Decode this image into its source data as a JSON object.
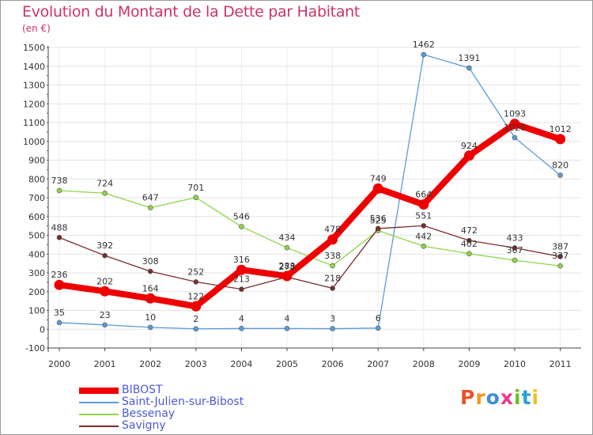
{
  "header": {
    "title": "Evolution du Montant de la Dette par Habitant",
    "unit": "(en €)"
  },
  "logo": {
    "text": "Proxiti",
    "colors": [
      "#e8532b",
      "#f29a1b",
      "#3a8fd6",
      "#e83a8a",
      "#6cbf2a",
      "#2b9fd8",
      "#f2c21b"
    ]
  },
  "chart_data": {
    "type": "line",
    "x": [
      "2000",
      "2001",
      "2002",
      "2003",
      "2004",
      "2005",
      "2006",
      "2007",
      "2008",
      "2009",
      "2010",
      "2011"
    ],
    "ylim": [
      -100,
      1500
    ],
    "yticks": [
      "-100",
      "0",
      "100",
      "200",
      "300",
      "400",
      "500",
      "600",
      "700",
      "800",
      "900",
      "1000",
      "1100",
      "1200",
      "1300",
      "1400",
      "1500"
    ],
    "grid": true,
    "legend_position": "bottom-left",
    "series": [
      {
        "name": "BIBOST",
        "color": "#ee0000",
        "stroke_width": 8,
        "values": [
          236,
          202,
          164,
          122,
          316,
          283,
          478,
          749,
          664,
          924,
          1093,
          1012
        ],
        "labels": [
          "236",
          "202",
          "164",
          "122",
          "316",
          "283",
          "478",
          "749",
          "664",
          "924",
          "1093",
          "1012"
        ]
      },
      {
        "name": "Saint-Julien-sur-Bibost",
        "color": "#5b9bd5",
        "stroke_width": 1.3,
        "values": [
          35,
          23,
          10,
          2,
          4,
          4,
          3,
          6,
          1462,
          1391,
          1020,
          820
        ],
        "labels": [
          "35",
          "23",
          "10",
          "2",
          "4",
          "4",
          "3",
          "6",
          "1462",
          "1391",
          "1020",
          "820"
        ]
      },
      {
        "name": "Bessenay",
        "color": "#8fd44a",
        "stroke_width": 1.3,
        "values": [
          738,
          724,
          647,
          701,
          546,
          434,
          338,
          525,
          442,
          402,
          367,
          337
        ],
        "labels": [
          "738",
          "724",
          "647",
          "701",
          "546",
          "434",
          "338",
          "525",
          "442",
          "402",
          "367",
          "337"
        ]
      },
      {
        "name": "Savigny",
        "color": "#7a2c2c",
        "stroke_width": 1.3,
        "values": [
          488,
          392,
          308,
          252,
          213,
          278,
          218,
          536,
          551,
          472,
          433,
          387
        ],
        "labels": [
          "488",
          "392",
          "308",
          "252",
          "213",
          "278",
          "218",
          "536",
          "551",
          "472",
          "433",
          "387"
        ]
      }
    ]
  }
}
